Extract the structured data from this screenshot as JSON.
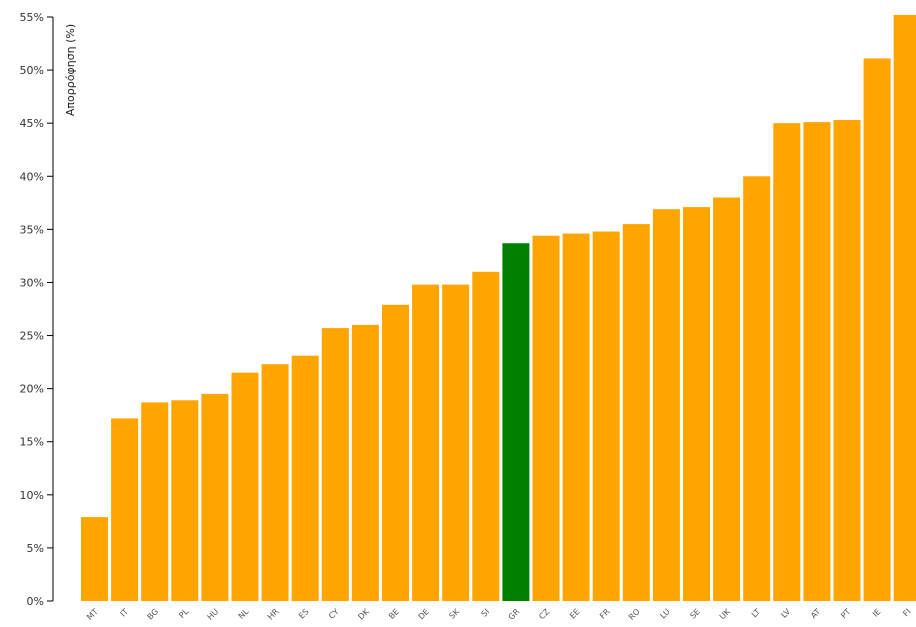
{
  "chart_data": {
    "type": "bar",
    "ylabel": "Απορρόφηση (%)",
    "ylim": [
      0,
      55
    ],
    "y_ticks": [
      "0%",
      "5%",
      "10%",
      "15%",
      "20%",
      "25%",
      "30%",
      "35%",
      "40%",
      "45%",
      "50%",
      "55%"
    ],
    "categories": [
      "MT",
      "IT",
      "BG",
      "PL",
      "HU",
      "NL",
      "HR",
      "ES",
      "CY",
      "DK",
      "BE",
      "DE",
      "SK",
      "SI",
      "GR",
      "CZ",
      "EE",
      "FR",
      "RO",
      "LU",
      "SE",
      "UK",
      "LT",
      "LV",
      "AT",
      "PT",
      "IE",
      "FI"
    ],
    "values": [
      7.9,
      17.2,
      18.7,
      18.9,
      19.5,
      21.5,
      22.3,
      23.1,
      25.7,
      26.0,
      27.9,
      29.8,
      29.8,
      31.0,
      33.7,
      34.4,
      34.6,
      34.8,
      35.5,
      36.9,
      37.1,
      38.0,
      40.0,
      45.0,
      45.1,
      45.3,
      51.1,
      55.2
    ],
    "highlight": "GR",
    "colors": {
      "bar": "#FFA500",
      "highlight": "#008000"
    },
    "grid": false
  }
}
